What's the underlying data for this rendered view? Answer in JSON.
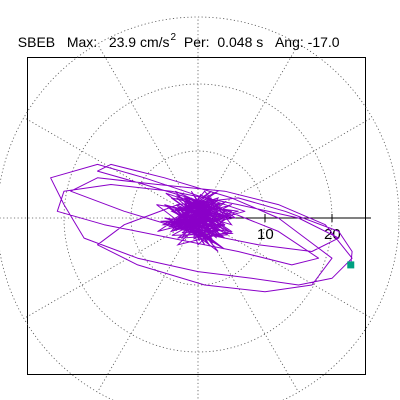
{
  "header": {
    "station": "SBEB",
    "max_label": "Max:",
    "max_value": "23.9 cm/s",
    "max_exp": "2",
    "per_label": "Per:",
    "per_value": "0.048 s",
    "ang_label": "Ang:",
    "ang_value": "-17.0"
  },
  "colors": {
    "trace": "#8a00c8",
    "marker": "#00a080",
    "grid": "#555555",
    "axis": "#000000"
  },
  "chart_data": {
    "type": "line",
    "plot_style": "polar particle-motion hodogram",
    "radial_ticks": [
      10,
      20
    ],
    "radial_max": 25,
    "radial_grid": [
      10,
      20,
      30
    ],
    "angular_grid_step_deg": 30,
    "axis_angle_deg": 0,
    "end_marker": [
      22.8,
      -7.0
    ],
    "x": [
      0,
      2,
      -4,
      3,
      -2,
      4,
      -3,
      1,
      5,
      -5,
      2,
      -1,
      6,
      -6,
      3,
      -3,
      0,
      4,
      -4,
      7,
      -8,
      -15,
      -22,
      -20,
      -17,
      -9,
      0,
      8,
      15,
      20,
      23,
      19,
      12,
      4,
      -6,
      -15,
      -19,
      -11,
      -1,
      9,
      17,
      21,
      15,
      6,
      -4,
      -13,
      -20,
      -21,
      -14,
      -4,
      6,
      14,
      18,
      12,
      2,
      -8,
      -15,
      -13,
      -5,
      5,
      12,
      16,
      20,
      17,
      10,
      1,
      -9,
      -15,
      -11,
      -3,
      6,
      13,
      21,
      23,
      22.8
    ],
    "y": [
      0,
      1,
      -2,
      2,
      3,
      -1,
      -3,
      0,
      2,
      -1,
      -3,
      2,
      1,
      -2,
      4,
      1,
      -3,
      1,
      -2,
      1,
      6,
      8,
      6,
      2,
      -3,
      -6,
      -8,
      -9,
      -10,
      -9,
      -6,
      -1,
      2,
      4,
      5,
      6,
      4,
      1,
      -2,
      -4,
      -5,
      -3,
      0,
      2,
      4,
      5,
      4,
      1,
      -1,
      -3,
      -5,
      -7,
      -6,
      -2,
      2,
      5,
      7,
      8,
      6,
      3,
      0,
      -3,
      -6,
      -10,
      -11,
      -10,
      -7,
      -4,
      -1,
      2,
      3,
      1,
      -2,
      -5,
      -7.0
    ],
    "cluster_x": [
      0,
      3,
      -3,
      2,
      -2,
      4,
      -4,
      1,
      5,
      -5,
      3,
      -1,
      2,
      -3,
      4,
      -2,
      0,
      5,
      -4,
      3,
      -1,
      2,
      -5,
      4,
      -2,
      1,
      -3,
      3,
      0,
      -4,
      2,
      -1,
      5,
      -3,
      1
    ],
    "cluster_y": [
      0,
      2,
      -1,
      -3,
      3,
      1,
      -2,
      4,
      -1,
      2,
      -4,
      -2,
      3,
      0,
      -3,
      2,
      -4,
      1,
      3,
      -2,
      4,
      -1,
      0,
      -3,
      2,
      -3,
      1,
      3,
      -2,
      -1,
      4,
      2,
      -2,
      -4,
      0
    ]
  }
}
